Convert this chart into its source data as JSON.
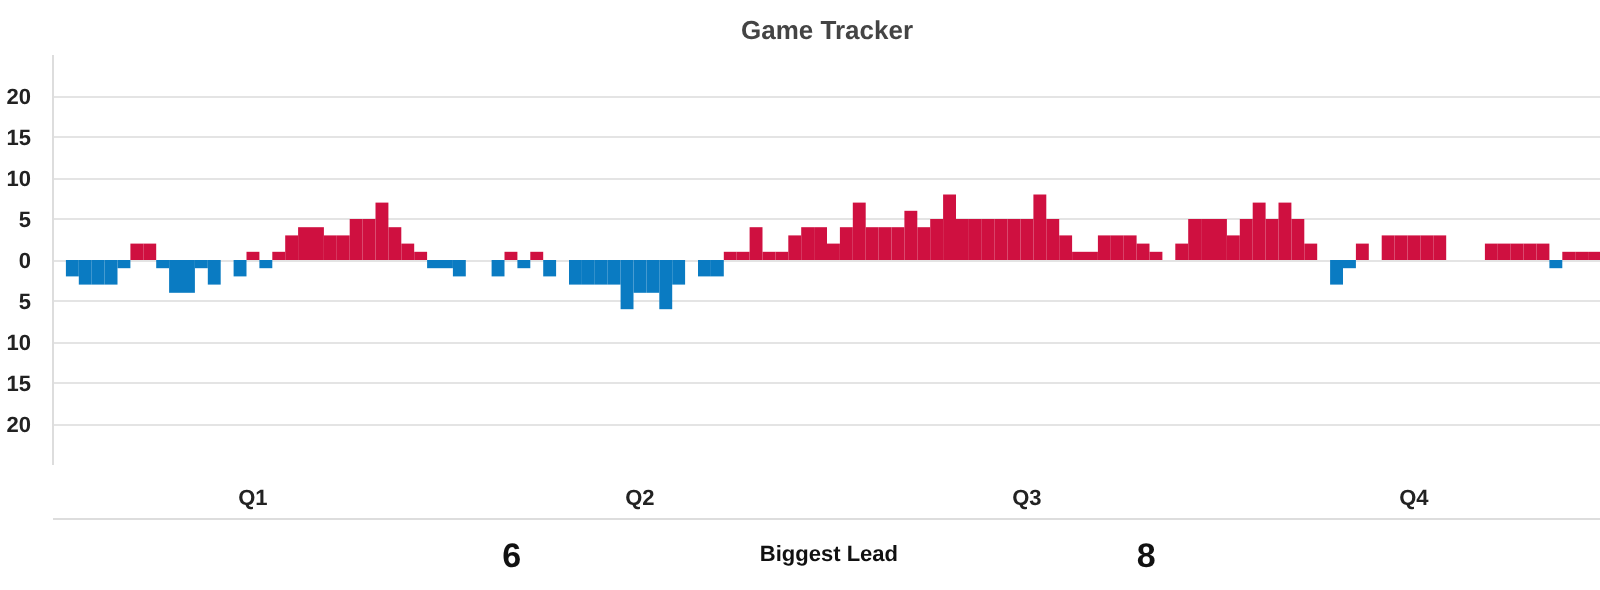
{
  "chart_data": {
    "type": "bar",
    "title": "Game Tracker",
    "categories": [
      null,
      null,
      null,
      null,
      null,
      null,
      null,
      null,
      null,
      null,
      null,
      null,
      null,
      null,
      null,
      "Q1",
      null,
      null,
      null,
      null,
      null,
      null,
      null,
      null,
      null,
      null,
      null,
      null,
      null,
      null,
      null,
      null,
      null,
      null,
      null,
      null,
      null,
      null,
      null,
      null,
      null,
      null,
      null,
      null,
      null,
      "Q2",
      null,
      null,
      null,
      null,
      null,
      null,
      null,
      null,
      null,
      null,
      null,
      null,
      null,
      null,
      null,
      null,
      null,
      null,
      null,
      null,
      null,
      null,
      null,
      null,
      null,
      null,
      null,
      null,
      null,
      "Q3",
      null,
      null,
      null,
      null,
      null,
      null,
      null,
      null,
      null,
      null,
      null,
      null,
      null,
      null,
      null,
      null,
      null,
      null,
      null,
      null,
      null,
      null,
      null,
      null,
      null,
      null,
      null,
      null,
      null,
      "Q4",
      null,
      null,
      null,
      null,
      null,
      null,
      null,
      null,
      null,
      null,
      null,
      null,
      null,
      null
    ],
    "values": [
      null,
      -2,
      -3,
      -3,
      -3,
      -1,
      2,
      2,
      -1,
      -4,
      -4,
      -1,
      -3,
      null,
      -2,
      1,
      -1,
      1,
      3,
      4,
      4,
      3,
      3,
      5,
      5,
      7,
      4,
      2,
      1,
      -1,
      -1,
      -2,
      null,
      null,
      -2,
      1,
      -1,
      1,
      -2,
      null,
      -3,
      -3,
      -3,
      -3,
      -6,
      -4,
      -4,
      -6,
      -3,
      null,
      -2,
      -2,
      1,
      1,
      4,
      1,
      1,
      3,
      4,
      4,
      2,
      4,
      7,
      4,
      4,
      4,
      6,
      4,
      5,
      8,
      5,
      5,
      5,
      5,
      5,
      5,
      8,
      5,
      3,
      1,
      1,
      3,
      3,
      3,
      2,
      1,
      null,
      2,
      5,
      5,
      5,
      3,
      5,
      7,
      5,
      7,
      5,
      2,
      null,
      -3,
      -1,
      2,
      null,
      3,
      3,
      3,
      3,
      3,
      null,
      null,
      null,
      2,
      2,
      2,
      2,
      2,
      -1,
      1,
      1,
      1
    ],
    "colors": [
      null,
      "#0a7bc2",
      "#0a7bc2",
      "#0a7bc2",
      "#0a7bc2",
      "#0a7bc2",
      "#cf1040",
      "#cf1040",
      "#0a7bc2",
      "#0a7bc2",
      "#0a7bc2",
      "#0a7bc2",
      "#0a7bc2",
      null,
      "#0a7bc2",
      "#cf1040",
      "#0a7bc2",
      "#cf1040",
      "#cf1040",
      "#cf1040",
      "#cf1040",
      "#cf1040",
      "#cf1040",
      "#cf1040",
      "#cf1040",
      "#cf1040",
      "#cf1040",
      "#cf1040",
      "#cf1040",
      "#0a7bc2",
      "#0a7bc2",
      "#0a7bc2",
      null,
      null,
      "#0a7bc2",
      "#cf1040",
      "#0a7bc2",
      "#cf1040",
      "#0a7bc2",
      null,
      "#0a7bc2",
      "#0a7bc2",
      "#0a7bc2",
      "#0a7bc2",
      "#0a7bc2",
      "#0a7bc2",
      "#0a7bc2",
      "#0a7bc2",
      "#0a7bc2",
      null,
      "#0a7bc2",
      "#0a7bc2",
      "#cf1040",
      "#cf1040",
      "#cf1040",
      "#cf1040",
      "#cf1040",
      "#cf1040",
      "#cf1040",
      "#cf1040",
      "#cf1040",
      "#cf1040",
      "#cf1040",
      "#cf1040",
      "#cf1040",
      "#cf1040",
      "#cf1040",
      "#cf1040",
      "#cf1040",
      "#cf1040",
      "#cf1040",
      "#cf1040",
      "#cf1040",
      "#cf1040",
      "#cf1040",
      "#cf1040",
      "#cf1040",
      "#cf1040",
      "#cf1040",
      "#cf1040",
      "#cf1040",
      "#cf1040",
      "#cf1040",
      "#cf1040",
      "#cf1040",
      "#cf1040",
      null,
      "#cf1040",
      "#cf1040",
      "#cf1040",
      "#cf1040",
      "#cf1040",
      "#cf1040",
      "#cf1040",
      "#cf1040",
      "#cf1040",
      "#cf1040",
      "#cf1040",
      null,
      "#0a7bc2",
      "#0a7bc2",
      "#cf1040",
      null,
      "#cf1040",
      "#cf1040",
      "#cf1040",
      "#cf1040",
      "#cf1040",
      null,
      null,
      null,
      "#cf1040",
      "#cf1040",
      "#cf1040",
      "#cf1040",
      "#cf1040",
      "#0a7bc2",
      "#cf1040",
      "#cf1040",
      "#cf1040"
    ],
    "ylim": [
      -25,
      25
    ],
    "yticks": [
      {
        "value": -20,
        "label": "20"
      },
      {
        "value": -15,
        "label": "15"
      },
      {
        "value": -10,
        "label": "10"
      },
      {
        "value": -5,
        "label": "5"
      },
      0,
      5,
      10,
      15,
      20
    ],
    "grid": "y",
    "annotations": [
      "6",
      "Biggest Lead",
      "8"
    ]
  }
}
